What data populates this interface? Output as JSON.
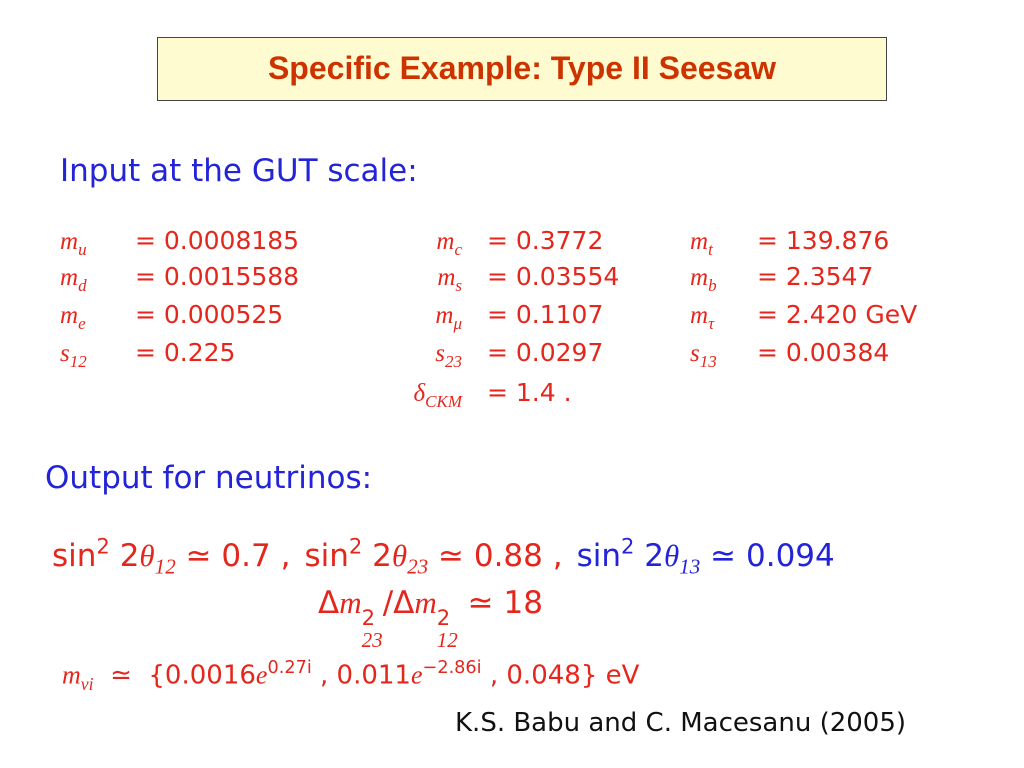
{
  "title": "Specific Example: Type II Seesaw",
  "input_heading": "Input at the GUT scale:",
  "inputs": [
    [
      {
        "i": "m",
        "sub": "u",
        "t": "= 0.0008185"
      },
      {
        "i": "m",
        "sub": "d",
        "t": "= 0.0015588"
      },
      {
        "i": "m",
        "sub": "e",
        "t": "= 0.000525"
      },
      {
        "i": "s",
        "sub": "12",
        "t": "= 0.225"
      }
    ],
    [
      {
        "i": "m",
        "sub": "c",
        "t": "= 0.3772"
      },
      {
        "i": "m",
        "sub": "s",
        "t": "= 0.03554"
      },
      {
        "i": "m",
        "sub": "μ",
        "t": "= 0.1107"
      },
      {
        "i": "s",
        "sub": "23",
        "t": "= 0.0297"
      },
      {
        "i": "δ",
        "sub": "CKM",
        "t": "= 1.4 ."
      }
    ],
    [
      {
        "i": "m",
        "sub": "t",
        "t": "= 139.876"
      },
      {
        "i": "m",
        "sub": "b",
        "t": "= 2.3547"
      },
      {
        "i": "m",
        "sub": "τ",
        "t": "= 2.420 GeV"
      },
      {
        "i": "s",
        "sub": "13",
        "t": "= 0.00384"
      }
    ]
  ],
  "output_heading": "Output for neutrinos:",
  "mixing": [
    [
      {
        "t": "sin",
        "sup": "2"
      },
      {
        "t": " 2"
      },
      {
        "i": "θ",
        "sub": "12"
      },
      {
        "t": " ≃ 0.7 ,"
      }
    ],
    [
      {
        "t": "sin",
        "sup": "2"
      },
      {
        "t": " 2"
      },
      {
        "i": "θ",
        "sub": "23"
      },
      {
        "t": " ≃ 0.88 ,"
      }
    ],
    [
      {
        "t": "sin",
        "sup": "2"
      },
      {
        "t": " 2"
      },
      {
        "i": "θ",
        "sub": "13"
      },
      {
        "t": " ≃ 0.094"
      }
    ]
  ],
  "ratio": [
    {
      "t": "Δ"
    },
    {
      "i": "m",
      "sup": "2",
      "sub": "23"
    },
    {
      "t": "/Δ"
    },
    {
      "i": "m",
      "sup": "2",
      "sub": "12"
    },
    {
      "t": " ≃ 18"
    }
  ],
  "masses": [
    {
      "i": "m",
      "sub": "νi"
    },
    {
      "t": "  ≃  {0.0016"
    },
    {
      "i": "e",
      "sup": "0.27i"
    },
    {
      "t": " , 0.011"
    },
    {
      "i": "e",
      "sup": "−2.86i"
    },
    {
      "t": " , 0.048} eV"
    }
  ],
  "citation": "K.S. Babu and C. Macesanu (2005)"
}
